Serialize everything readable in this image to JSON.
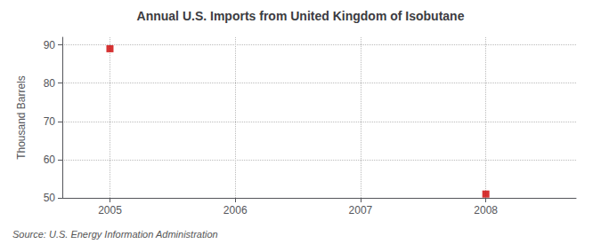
{
  "chart_data": {
    "type": "scatter",
    "title": "Annual U.S. Imports from United Kingdom of Isobutane",
    "ylabel": "Thousand Barrels",
    "annotations": [
      "Source: U.S. Energy Information Administration"
    ],
    "x": [
      2005,
      2008
    ],
    "values": [
      89,
      51
    ],
    "color": "#cc0000",
    "marker": "square",
    "xlim": [
      2004.62,
      2008.72
    ],
    "xticks": [
      2005,
      2006,
      2007,
      2008
    ],
    "ylim": [
      50,
      92
    ],
    "yticks": [
      50,
      60,
      70,
      80,
      90
    ],
    "grid": true
  }
}
